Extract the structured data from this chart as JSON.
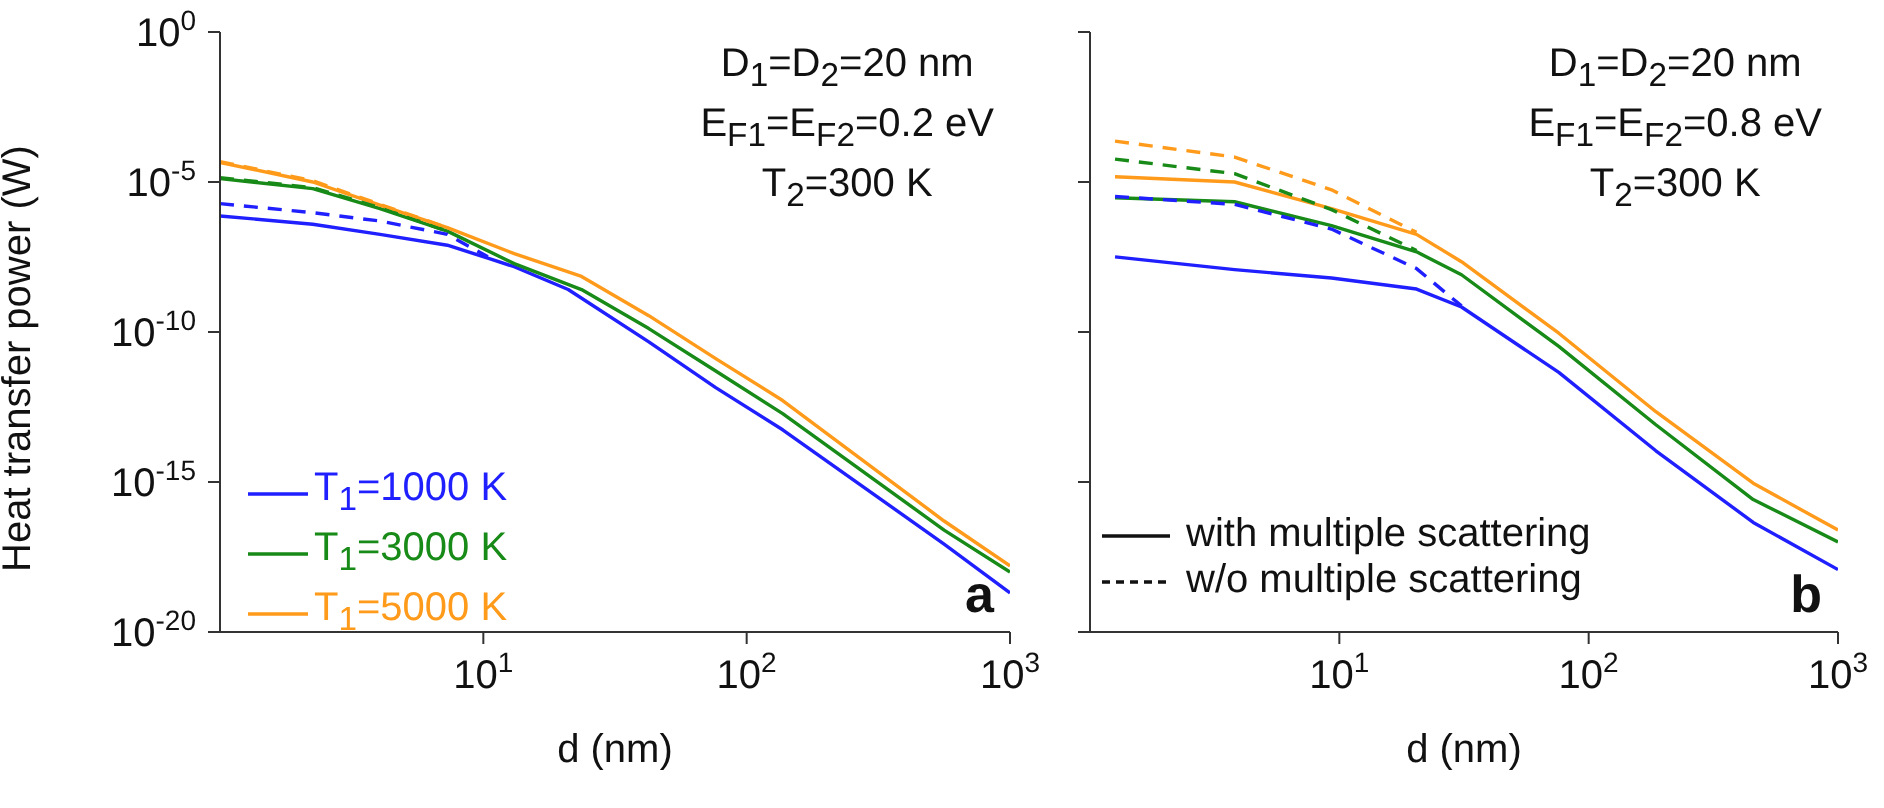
{
  "chart_data": [
    {
      "type": "line",
      "xlabel": "d (nm)",
      "ylabel": "Heat transfer power (W)",
      "log": "xy",
      "legend": "bottom left",
      "xlim": [
        1,
        1000
      ],
      "xticks": [
        {
          "value": 10,
          "label": "10$^{1}$"
        },
        {
          "value": 100,
          "label": "10$^{2}$"
        },
        {
          "value": 1000,
          "label": "10$^{3}$"
        }
      ],
      "ylim": [
        1e-20,
        1
      ],
      "yticks": [
        {
          "value": 1e-20,
          "label": "10$^{-20}$"
        },
        {
          "value": 1e-15,
          "label": "10$^{-15}$"
        },
        {
          "value": 1e-10,
          "label": "10$^{-10}$"
        },
        {
          "value": 1e-05,
          "label": "10$^{-5}$"
        },
        {
          "value": 1,
          "label": "10$^{0}$"
        }
      ],
      "annotations": [
        "D$_{1}$=D$_{2}$=20 nm",
        "E$_{F1}$=E$_{F2}$=0.2 eV",
        "T$_{2}$=300 K",
        "a"
      ],
      "series": [
        {
          "name": "T$_{1}$=1000 K",
          "color": "#1f1fff",
          "line_style": "solid",
          "x": [
            1,
            2.25,
            4.05,
            7.3,
            10.4,
            13.1,
            21,
            42.5,
            76.3,
            137,
            562,
            1000
          ],
          "values": [
            7.4e-07,
            3.9e-07,
            1.8e-07,
            7.8e-08,
            2.9e-08,
            1.5e-08,
            2.6e-09,
            4.7e-11,
            1.4e-12,
            5.5e-14,
            8.5e-18,
            2e-19
          ]
        },
        {
          "name": "T$_{1}$=3000 K",
          "color": "#178a17",
          "line_style": "solid",
          "x": [
            1,
            2.25,
            4.05,
            7.3,
            13.1,
            23.6,
            42.5,
            76.3,
            137,
            562,
            1000
          ],
          "values": [
            1.3e-05,
            6e-06,
            1.3e-06,
            2.3e-07,
            1.9e-08,
            2.6e-09,
            1.3e-10,
            5e-12,
            1.9e-13,
            2.5e-17,
            1e-18
          ]
        },
        {
          "name": "T$_{1}$=5000 K",
          "color": "#ff9a1a",
          "line_style": "solid",
          "x": [
            1,
            2.25,
            4.05,
            7.3,
            13.1,
            23.6,
            42.5,
            76.3,
            137,
            562,
            1000
          ],
          "values": [
            4.5e-05,
            1e-05,
            1.7e-06,
            3e-07,
            4.1e-08,
            7.1e-09,
            3.5e-10,
            1.3e-11,
            5.2e-13,
            5e-17,
            1.6e-18
          ]
        },
        {
          "color": "#1f1fff",
          "line_style": "dashed",
          "x": [
            1,
            2.25,
            4.05,
            7.3,
            10.4
          ],
          "values": [
            1.9e-06,
            9.5e-07,
            5e-07,
            1.8e-07,
            3.2e-08
          ]
        },
        {
          "color": "#178a17",
          "line_style": "dashed",
          "x": [
            1,
            2.25,
            4.05,
            7.3
          ],
          "values": [
            1.4e-05,
            6.5e-06,
            1.4e-06,
            2.3e-07
          ]
        },
        {
          "color": "#ff9a1a",
          "line_style": "dashed",
          "x": [
            1,
            2.25,
            4.05,
            7.3
          ],
          "values": [
            4.8e-05,
            1.1e-05,
            1.8e-06,
            3e-07
          ]
        }
      ]
    },
    {
      "type": "line",
      "xlabel": "d (nm)",
      "log": "xy",
      "tick_labels": "x",
      "xlim": [
        1,
        1000
      ],
      "xticks": [
        {
          "value": 10,
          "label": "10$^{1}$"
        },
        {
          "value": 100,
          "label": "10$^{2}$"
        },
        {
          "value": 1000,
          "label": "10$^{3}$"
        }
      ],
      "ylim": [
        1e-20,
        1
      ],
      "yticks": [
        {
          "value": 1e-20,
          "label": null
        },
        {
          "value": 1e-15,
          "label": null
        },
        {
          "value": 1e-10,
          "label": null
        },
        {
          "value": 1e-05,
          "label": null
        },
        {
          "value": 1,
          "label": null
        }
      ],
      "annotations": [
        "D$_{1}$=D$_{2}$=20 nm",
        "E$_{F1}$=E$_{F2}$=0.8 eV",
        "T$_{2}$=300 K",
        "with multiple scattering",
        "w/o multiple scattering",
        "b"
      ],
      "series": [
        {
          "color": "#1f1fff",
          "line_style": "solid",
          "x": [
            1.26,
            3.8,
            9.3,
            20.4,
            30.9,
            75.9,
            186,
            457,
            1000
          ],
          "values": [
            3.2e-08,
            1.2e-08,
            6.3e-09,
            2.7e-09,
            6.8e-10,
            4.5e-12,
            1.1e-14,
            4.5e-17,
            1.2e-18
          ]
        },
        {
          "color": "#178a17",
          "line_style": "solid",
          "x": [
            1.26,
            3.8,
            9.3,
            20.4,
            30.9,
            75.9,
            186,
            457,
            1000
          ],
          "values": [
            3e-06,
            2.2e-06,
            3.5e-07,
            4.7e-08,
            8.1e-09,
            3.3e-11,
            8.1e-14,
            2.6e-16,
            1e-17
          ]
        },
        {
          "color": "#ff9a1a",
          "line_style": "solid",
          "x": [
            1.26,
            3.8,
            9.3,
            20.4,
            30.9,
            75.9,
            186,
            457,
            1000
          ],
          "values": [
            1.5e-05,
            1e-05,
            1.3e-06,
            1.8e-07,
            2.2e-08,
            9.1e-11,
            2.2e-13,
            9.1e-16,
            2.5e-17
          ]
        },
        {
          "color": "#1f1fff",
          "line_style": "dashed",
          "x": [
            1.26,
            3.8,
            9.3,
            20.4,
            30.9
          ],
          "values": [
            3.3e-06,
            1.8e-06,
            2.7e-07,
            1.3e-08,
            7.4e-10
          ]
        },
        {
          "color": "#178a17",
          "line_style": "dashed",
          "x": [
            1.26,
            3.8,
            9.3,
            20.4
          ],
          "values": [
            5.8e-05,
            1.9e-05,
            1.2e-06,
            5.2e-08
          ]
        },
        {
          "color": "#ff9a1a",
          "line_style": "dashed",
          "x": [
            1.26,
            3.8,
            9.3,
            20.4
          ],
          "values": [
            0.00023,
            6.8e-05,
            5.5e-06,
            2.1e-07
          ]
        }
      ]
    }
  ]
}
